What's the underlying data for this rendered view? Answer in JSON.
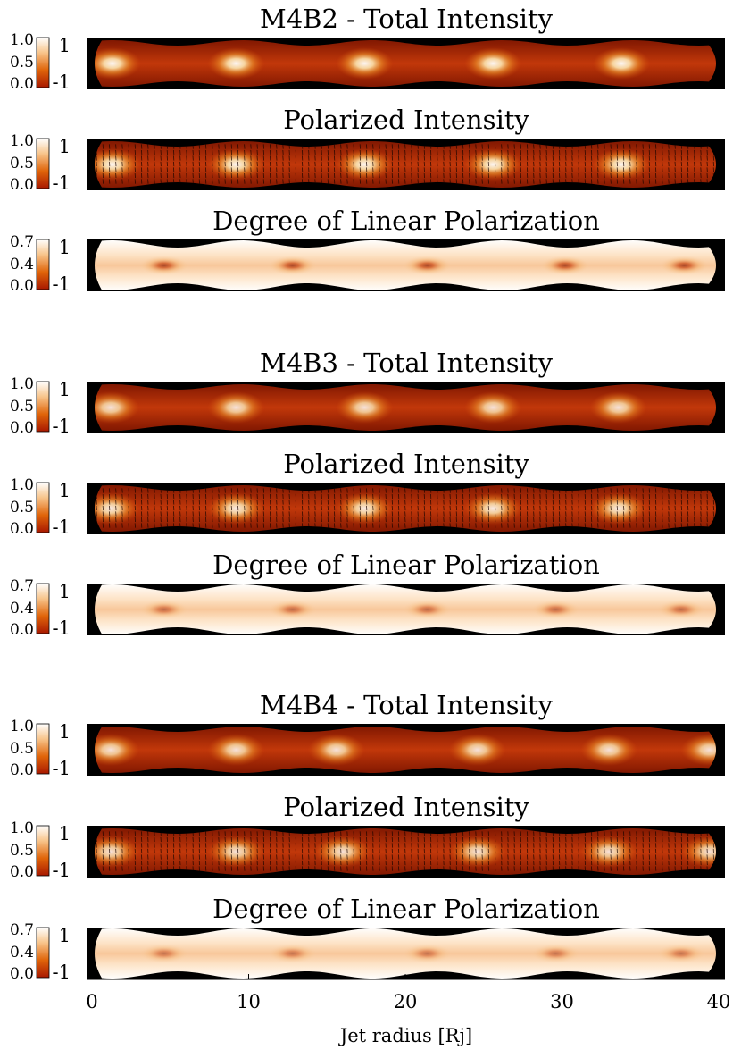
{
  "chart_data": {
    "type": "heatmap",
    "xlabel": "Jet radius [Rj]",
    "x_ticks": [
      "0",
      "10",
      "20",
      "30",
      "40"
    ],
    "xlim": [
      0,
      40
    ],
    "colormap": [
      "#8a1500",
      "#c33a06",
      "#e8770f",
      "#f7b85a",
      "#ffffff"
    ],
    "panels": [
      {
        "title": "M4B2 - Total Intensity",
        "kind": "total",
        "cbar_ticks": [
          "1.0",
          "0.5",
          "0.0"
        ],
        "cbar_ticks_right": [
          "1",
          "-1"
        ],
        "knots": [
          1.3,
          9.2,
          17.4,
          25.6,
          33.8
        ],
        "knot_strength": 0.95,
        "vectors": false
      },
      {
        "title": "Polarized Intensity",
        "kind": "polarized",
        "cbar_ticks": [
          "1.0",
          "0.5",
          "0.0"
        ],
        "cbar_ticks_right": [
          "1",
          "-1"
        ],
        "knots": [
          1.3,
          9.2,
          17.4,
          25.6,
          33.8
        ],
        "knot_strength": 0.95,
        "vectors": true
      },
      {
        "title": "Degree of Linear Polarization",
        "kind": "degree",
        "cbar_ticks": [
          "0.7",
          "0.4",
          "0.0"
        ],
        "cbar_ticks_right": [
          "1",
          "-1"
        ],
        "knots": [
          4.6,
          12.8,
          21.4,
          30.2,
          37.8
        ],
        "knot_strength": 0.75,
        "vectors": false
      },
      {
        "title": "M4B3 - Total Intensity",
        "kind": "total",
        "cbar_ticks": [
          "1.0",
          "0.5",
          "0.0"
        ],
        "cbar_ticks_right": [
          "1",
          "-1"
        ],
        "knots": [
          1.2,
          9.2,
          17.4,
          25.6,
          33.6
        ],
        "knot_strength": 0.85,
        "vectors": false
      },
      {
        "title": "Polarized Intensity",
        "kind": "polarized",
        "cbar_ticks": [
          "1.0",
          "0.5",
          "0.0"
        ],
        "cbar_ticks_right": [
          "1",
          "-1"
        ],
        "knots": [
          1.2,
          9.2,
          17.4,
          25.6,
          33.6
        ],
        "knot_strength": 0.9,
        "vectors": true
      },
      {
        "title": "Degree of Linear Polarization",
        "kind": "degree",
        "cbar_ticks": [
          "0.7",
          "0.4",
          "0.0"
        ],
        "cbar_ticks_right": [
          "1",
          "-1"
        ],
        "knots": [
          4.6,
          12.8,
          21.4,
          29.6,
          37.6
        ],
        "knot_strength": 0.55,
        "vectors": false
      },
      {
        "title": "M4B4 - Total Intensity",
        "kind": "total",
        "cbar_ticks": [
          "1.0",
          "0.5",
          "0.0"
        ],
        "cbar_ticks_right": [
          "1",
          "-1"
        ],
        "knots": [
          1.2,
          9.2,
          15.6,
          24.6,
          33.0,
          39.4
        ],
        "knot_strength": 0.85,
        "vectors": false
      },
      {
        "title": "Polarized Intensity",
        "kind": "polarized",
        "cbar_ticks": [
          "1.0",
          "0.5",
          "0.0"
        ],
        "cbar_ticks_right": [
          "1",
          "-1"
        ],
        "knots": [
          1.2,
          9.2,
          16.0,
          24.6,
          33.0,
          39.4
        ],
        "knot_strength": 0.85,
        "vectors": true
      },
      {
        "title": "Degree of Linear Polarization",
        "kind": "degree",
        "cbar_ticks": [
          "0.7",
          "0.4",
          "0.0"
        ],
        "cbar_ticks_right": [
          "1",
          "-1"
        ],
        "knots": [
          4.6,
          12.8,
          21.4,
          29.6,
          37.6
        ],
        "knot_strength": 0.5,
        "vectors": false
      }
    ]
  }
}
